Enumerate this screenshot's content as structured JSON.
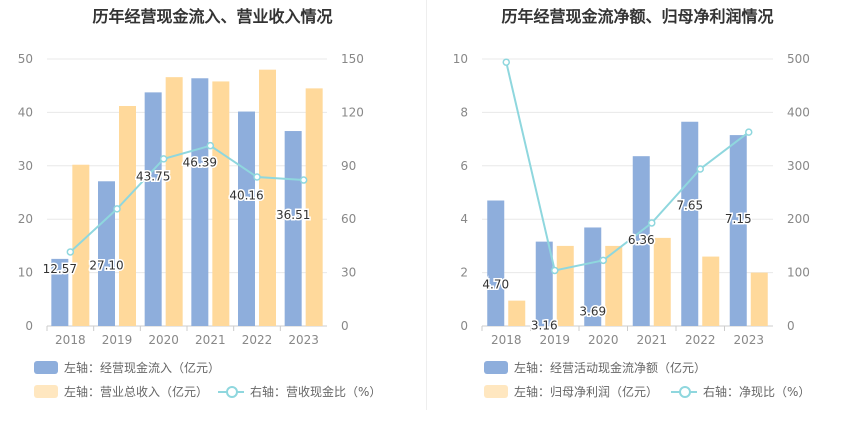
{
  "chart_data": [
    {
      "type": "bar",
      "title": "历年经营现金流入、营业收入情况",
      "categories": [
        "2018",
        "2019",
        "2020",
        "2021",
        "2022",
        "2023"
      ],
      "series": [
        {
          "name": "左轴：经营现金流入（亿元）",
          "axis": "left",
          "kind": "bar",
          "color": "#8eaedc",
          "values": [
            12.57,
            27.1,
            43.75,
            46.39,
            40.16,
            36.51
          ],
          "labels": [
            "12.57",
            "27.10",
            "43.75",
            "46.39",
            "40.16",
            "36.51"
          ]
        },
        {
          "name": "左轴：营业总收入（亿元）",
          "axis": "left",
          "kind": "bar",
          "color": "#ffd99b",
          "values": [
            30.2,
            41.2,
            46.6,
            45.8,
            48.0,
            44.5
          ]
        },
        {
          "name": "右轴：营收现金比（%）",
          "axis": "right",
          "kind": "line",
          "color": "#8fd7de",
          "values": [
            41.6,
            65.8,
            93.9,
            101.3,
            83.7,
            82.0
          ]
        }
      ],
      "y_left": {
        "min": 0,
        "max": 50,
        "ticks": [
          "0",
          "10",
          "20",
          "30",
          "40",
          "50"
        ]
      },
      "y_right": {
        "min": 0,
        "max": 150,
        "ticks": [
          "0",
          "30",
          "60",
          "90",
          "120",
          "150"
        ]
      },
      "grid": true,
      "legend": "bottom-left"
    },
    {
      "type": "bar",
      "title": "历年经营现金流净额、归母净利润情况",
      "categories": [
        "2018",
        "2019",
        "2020",
        "2021",
        "2022",
        "2023"
      ],
      "series": [
        {
          "name": "左轴：经营活动现金流净额（亿元）",
          "axis": "left",
          "kind": "bar",
          "color": "#8eaedc",
          "values": [
            4.7,
            3.16,
            3.69,
            6.36,
            7.65,
            7.15
          ],
          "labels": [
            "4.70",
            "3.16",
            "3.69",
            "6.36",
            "7.65",
            "7.15"
          ]
        },
        {
          "name": "左轴：归母净利润（亿元）",
          "axis": "left",
          "kind": "bar",
          "color": "#ffd99b",
          "values": [
            0.95,
            3.0,
            3.0,
            3.3,
            2.6,
            2.0
          ]
        },
        {
          "name": "右轴：净现比（%）",
          "axis": "right",
          "kind": "line",
          "color": "#8fd7de",
          "values": [
            494,
            104,
            123,
            193,
            294,
            363
          ]
        }
      ],
      "y_left": {
        "min": 0,
        "max": 10,
        "ticks": [
          "0",
          "2",
          "4",
          "6",
          "8",
          "10"
        ]
      },
      "y_right": {
        "min": 0,
        "max": 500,
        "ticks": [
          "0",
          "100",
          "200",
          "300",
          "400",
          "500"
        ]
      },
      "grid": true,
      "legend": "bottom-left"
    }
  ]
}
